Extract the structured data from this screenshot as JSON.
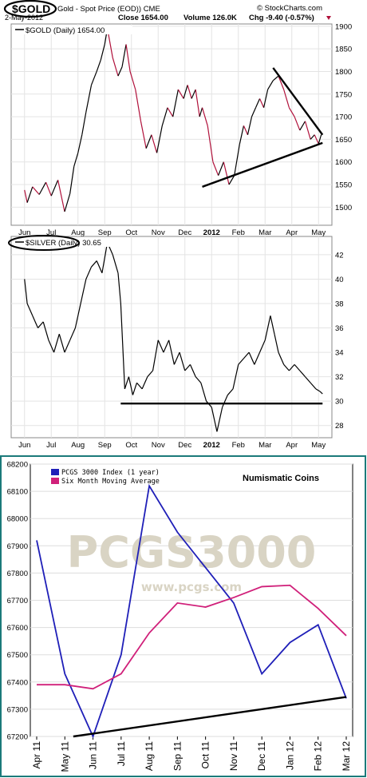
{
  "header": {
    "ticker": "$GOLD",
    "description": "Gold - Spot Price (EOD)) CME",
    "date": "2-May-2012",
    "close_text": "Close 1654.00",
    "volume_text": "Volume 126.0K",
    "chg_text": "Chg -9.40 (-0.57%)",
    "source": "© StockCharts.com"
  },
  "colors": {
    "price_line": "#000000",
    "down_segments": "#b0103a",
    "pcgs_index": "#1f1fb8",
    "moving_average": "#d0207a",
    "trendline": "#000000",
    "panel_border": "#1b7a7a",
    "watermark": "#d9d4c4"
  },
  "chart_data": [
    {
      "type": "line",
      "legend": "$GOLD (Daily) 1654.00",
      "months": [
        "Jun",
        "Jul",
        "Aug",
        "Sep",
        "Oct",
        "Nov",
        "Dec",
        "2012",
        "Feb",
        "Mar",
        "Apr",
        "May"
      ],
      "ylim": [
        1460,
        1905
      ],
      "yticks": [
        1500,
        1550,
        1600,
        1650,
        1700,
        1750,
        1800,
        1850,
        1900
      ],
      "series": [
        {
          "x": [
            0,
            0.1,
            0.3,
            0.55,
            0.8,
            1.0,
            1.25,
            1.5,
            1.7,
            1.85,
            2.0,
            2.15,
            2.3,
            2.5,
            2.7,
            2.85,
            3.0,
            3.1,
            3.3,
            3.5,
            3.65,
            3.8,
            3.95,
            4.15,
            4.35,
            4.55,
            4.75,
            4.95,
            5.15,
            5.35,
            5.55,
            5.75,
            5.95,
            6.1,
            6.25,
            6.4,
            6.55,
            6.65,
            6.85,
            7.05,
            7.25,
            7.45,
            7.65,
            7.85,
            8.05,
            8.2,
            8.35,
            8.5,
            8.65,
            8.8,
            8.95,
            9.1,
            9.3,
            9.5,
            9.7,
            9.9,
            10.1,
            10.3,
            10.5,
            10.7,
            10.85,
            11.0,
            11.1
          ],
          "values": [
            1538,
            1510,
            1545,
            1528,
            1555,
            1525,
            1560,
            1490,
            1530,
            1590,
            1620,
            1660,
            1710,
            1770,
            1800,
            1825,
            1860,
            1895,
            1830,
            1790,
            1810,
            1860,
            1800,
            1760,
            1690,
            1630,
            1660,
            1620,
            1680,
            1720,
            1700,
            1760,
            1740,
            1770,
            1740,
            1760,
            1700,
            1720,
            1680,
            1600,
            1570,
            1600,
            1550,
            1570,
            1640,
            1680,
            1660,
            1700,
            1720,
            1740,
            1720,
            1760,
            1780,
            1790,
            1760,
            1720,
            1700,
            1670,
            1690,
            1650,
            1660,
            1640,
            1660
          ]
        }
      ],
      "trendlines": [
        {
          "x": [
            6.65,
            11.15
          ],
          "values": [
            1545,
            1642
          ]
        },
        {
          "x": [
            9.3,
            11.15
          ],
          "values": [
            1808,
            1660
          ]
        }
      ]
    },
    {
      "type": "line",
      "legend": "$SILVER (Daily) 30.65",
      "months": [
        "Jun",
        "Jul",
        "Aug",
        "Sep",
        "Oct",
        "Nov",
        "Dec",
        "2012",
        "Feb",
        "Mar",
        "Apr",
        "May"
      ],
      "ylim": [
        27,
        43.5
      ],
      "yticks": [
        28,
        30,
        32,
        34,
        36,
        38,
        40,
        42
      ],
      "series": [
        {
          "x": [
            0,
            0.1,
            0.3,
            0.5,
            0.7,
            0.9,
            1.1,
            1.3,
            1.5,
            1.7,
            1.9,
            2.1,
            2.3,
            2.5,
            2.7,
            2.9,
            3.1,
            3.3,
            3.5,
            3.6,
            3.75,
            3.9,
            4.05,
            4.2,
            4.4,
            4.6,
            4.8,
            5.0,
            5.2,
            5.4,
            5.6,
            5.8,
            6.0,
            6.2,
            6.4,
            6.6,
            6.8,
            7.0,
            7.2,
            7.4,
            7.6,
            7.8,
            8.0,
            8.2,
            8.4,
            8.6,
            8.8,
            9.0,
            9.2,
            9.35,
            9.5,
            9.7,
            9.9,
            10.1,
            10.3,
            10.5,
            10.7,
            10.9,
            11.05,
            11.15
          ],
          "values": [
            40,
            38,
            37,
            36,
            36.5,
            35,
            34,
            35.5,
            34,
            35,
            36,
            38,
            40,
            41,
            41.5,
            40.5,
            43,
            42,
            40.5,
            38,
            31,
            32,
            30.5,
            31.5,
            31,
            32,
            32.5,
            35,
            34,
            35,
            33,
            34,
            32.5,
            33,
            32,
            31.5,
            30,
            29.5,
            27.5,
            29.5,
            30.5,
            31,
            33,
            33.5,
            34,
            33,
            34,
            35,
            37,
            35.5,
            34,
            33,
            32.5,
            33,
            32.5,
            32,
            31.5,
            31,
            30.8,
            30.6
          ]
        }
      ],
      "trendlines": [
        {
          "x": [
            3.6,
            11.15
          ],
          "values": [
            29.8,
            29.8
          ]
        }
      ]
    },
    {
      "type": "line",
      "title": "Numismatic Coins",
      "watermark": "PCGS3000",
      "watermark_url": "www.pcgs.com",
      "categories": [
        "Apr 11",
        "May 11",
        "Jun 11",
        "Jul 11",
        "Aug 11",
        "Sep 11",
        "Oct 11",
        "Nov 11",
        "Dec 11",
        "Jan 12",
        "Feb 12",
        "Mar 12"
      ],
      "ylim": [
        67200,
        68200
      ],
      "yticks": [
        67200,
        67300,
        67400,
        67500,
        67600,
        67700,
        67800,
        67900,
        68000,
        68100,
        68200
      ],
      "legend_position": "top-left",
      "series": [
        {
          "name": "PCGS 3000 Index (1 year)",
          "values": [
            67920,
            67430,
            67200,
            67500,
            68120,
            67950,
            67820,
            67690,
            67430,
            67545,
            67610,
            67340
          ]
        },
        {
          "name": "Six Month Moving Average",
          "values": [
            67390,
            67390,
            67375,
            67430,
            67580,
            67690,
            67675,
            67710,
            67750,
            67755,
            67670,
            67570
          ]
        }
      ],
      "trendlines": [
        {
          "x": [
            1.3,
            11.0
          ],
          "values": [
            67200,
            67345
          ]
        }
      ]
    }
  ]
}
